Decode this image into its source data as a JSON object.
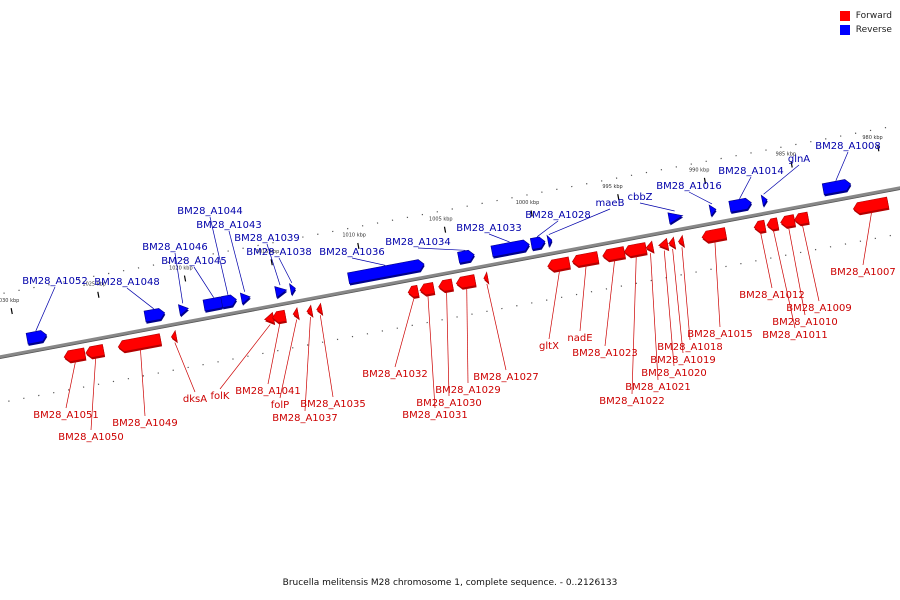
{
  "legend": {
    "forward": "Forward",
    "reverse": "Reverse"
  },
  "colors": {
    "forward": "#ff0000",
    "reverse": "#0000ff",
    "forward_label": "#cc0000",
    "reverse_label": "#0000aa",
    "backbone": "#888888"
  },
  "caption": "Brucella melitensis M28 chromosome 1, complete sequence. - 0..2126133",
  "ticks": [
    {
      "label": "1030 kbp",
      "kbp": 1030
    },
    {
      "label": "1025 kbp",
      "kbp": 1025
    },
    {
      "label": "1020 kbp",
      "kbp": 1020
    },
    {
      "label": "1015 kbp",
      "kbp": 1015
    },
    {
      "label": "1010 kbp",
      "kbp": 1010
    },
    {
      "label": "1005 kbp",
      "kbp": 1005
    },
    {
      "label": "1000 kbp",
      "kbp": 1000
    },
    {
      "label": "995 kbp",
      "kbp": 995
    },
    {
      "label": "990 kbp",
      "kbp": 990
    },
    {
      "label": "985 kbp",
      "kbp": 985
    },
    {
      "label": "980 kbp",
      "kbp": 980
    }
  ],
  "genes": [
    {
      "name": "BM28_A1052",
      "strand": "reverse"
    },
    {
      "name": "BM28_A1048",
      "strand": "reverse"
    },
    {
      "name": "BM28_A1046",
      "strand": "reverse"
    },
    {
      "name": "BM28_A1045",
      "strand": "reverse"
    },
    {
      "name": "BM28_A1044",
      "strand": "reverse"
    },
    {
      "name": "BM28_A1043",
      "strand": "reverse"
    },
    {
      "name": "BM28_A1039",
      "strand": "reverse"
    },
    {
      "name": "BM28_A1038",
      "strand": "reverse"
    },
    {
      "name": "BM28_A1036",
      "strand": "reverse"
    },
    {
      "name": "BM28_A1034",
      "strand": "reverse"
    },
    {
      "name": "BM28_A1033",
      "strand": "reverse"
    },
    {
      "name": "BM28_A1028",
      "strand": "reverse"
    },
    {
      "name": "maeB",
      "strand": "reverse"
    },
    {
      "name": "cbbZ",
      "strand": "reverse"
    },
    {
      "name": "BM28_A1016",
      "strand": "reverse"
    },
    {
      "name": "BM28_A1014",
      "strand": "reverse"
    },
    {
      "name": "glnA",
      "strand": "reverse"
    },
    {
      "name": "BM28_A1008",
      "strand": "reverse"
    },
    {
      "name": "BM28_A1051",
      "strand": "forward"
    },
    {
      "name": "BM28_A1050",
      "strand": "forward"
    },
    {
      "name": "BM28_A1049",
      "strand": "forward"
    },
    {
      "name": "dksA",
      "strand": "forward"
    },
    {
      "name": "folK",
      "strand": "forward"
    },
    {
      "name": "BM28_A1041",
      "strand": "forward"
    },
    {
      "name": "folP",
      "strand": "forward"
    },
    {
      "name": "BM28_A1037",
      "strand": "forward"
    },
    {
      "name": "BM28_A1035",
      "strand": "forward"
    },
    {
      "name": "BM28_A1032",
      "strand": "forward"
    },
    {
      "name": "BM28_A1031",
      "strand": "forward"
    },
    {
      "name": "BM28_A1030",
      "strand": "forward"
    },
    {
      "name": "BM28_A1029",
      "strand": "forward"
    },
    {
      "name": "BM28_A1027",
      "strand": "forward"
    },
    {
      "name": "gltX",
      "strand": "forward"
    },
    {
      "name": "nadE",
      "strand": "forward"
    },
    {
      "name": "BM28_A1023",
      "strand": "forward"
    },
    {
      "name": "BM28_A1022",
      "strand": "forward"
    },
    {
      "name": "BM28_A1021",
      "strand": "forward"
    },
    {
      "name": "BM28_A1020",
      "strand": "forward"
    },
    {
      "name": "BM28_A1019",
      "strand": "forward"
    },
    {
      "name": "BM28_A1018",
      "strand": "forward"
    },
    {
      "name": "BM28_A1015",
      "strand": "forward"
    },
    {
      "name": "BM28_A1012",
      "strand": "forward"
    },
    {
      "name": "BM28_A1011",
      "strand": "forward"
    },
    {
      "name": "BM28_A1010",
      "strand": "forward"
    },
    {
      "name": "BM28_A1009",
      "strand": "forward"
    },
    {
      "name": "BM28_A1007",
      "strand": "forward"
    }
  ]
}
